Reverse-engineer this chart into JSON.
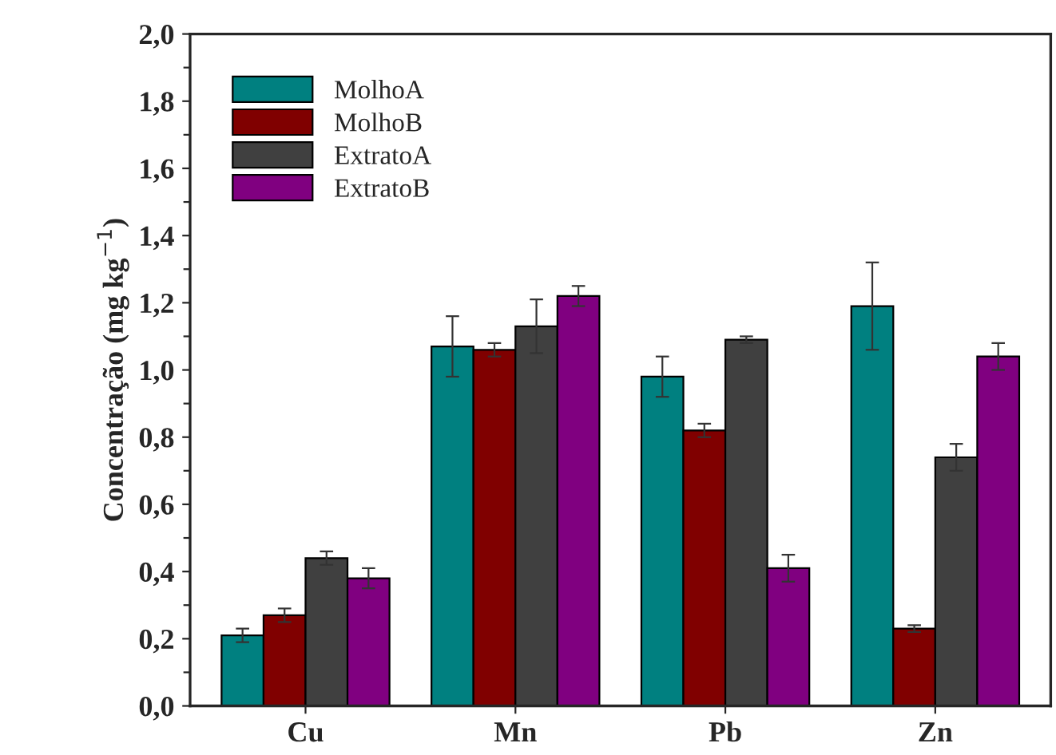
{
  "chart_data": {
    "type": "bar",
    "ylabel": "Concentração (mg kg$^{−1}$)",
    "categories": [
      "Cu",
      "Mn",
      "Pb",
      "Zn"
    ],
    "series": [
      {
        "name": "MolhoA",
        "color": "#008080",
        "values": [
          0.21,
          1.07,
          0.98,
          1.19
        ],
        "errors": [
          0.02,
          0.09,
          0.06,
          0.13
        ]
      },
      {
        "name": "MolhoB",
        "color": "#800000",
        "values": [
          0.27,
          1.06,
          0.82,
          0.23
        ],
        "errors": [
          0.02,
          0.02,
          0.02,
          0.01
        ]
      },
      {
        "name": "ExtratoA",
        "color": "#404040",
        "values": [
          0.44,
          1.13,
          1.09,
          0.74
        ],
        "errors": [
          0.02,
          0.08,
          0.01,
          0.04
        ]
      },
      {
        "name": "ExtratoB",
        "color": "#800080",
        "values": [
          0.38,
          1.22,
          0.41,
          1.04
        ],
        "errors": [
          0.03,
          0.03,
          0.04,
          0.04
        ]
      }
    ],
    "ylim": [
      0,
      2.0
    ],
    "yticks": [
      {
        "value": 0,
        "label": "0,0"
      },
      {
        "value": 0.1,
        "label": null
      },
      {
        "value": 0.2,
        "label": "0,2"
      },
      {
        "value": 0.3,
        "label": null
      },
      {
        "value": 0.4,
        "label": "0,4"
      },
      {
        "value": 0.5,
        "label": null
      },
      {
        "value": 0.6,
        "label": "0,6"
      },
      {
        "value": 0.7,
        "label": null
      },
      {
        "value": 0.8,
        "label": "0,8"
      },
      {
        "value": 0.9,
        "label": null
      },
      {
        "value": 1.0,
        "label": "1,0"
      },
      {
        "value": 1.1,
        "label": null
      },
      {
        "value": 1.2,
        "label": "1,2"
      },
      {
        "value": 1.3,
        "label": null
      },
      {
        "value": 1.4,
        "label": "1,4"
      },
      {
        "value": 1.5,
        "label": null
      },
      {
        "value": 1.6,
        "label": "1,6"
      },
      {
        "value": 1.7,
        "label": null
      },
      {
        "value": 1.8,
        "label": "1,8"
      },
      {
        "value": 1.9,
        "label": null
      },
      {
        "value": 2.0,
        "label": "2,0"
      }
    ],
    "legend": "top left",
    "grid": false
  }
}
